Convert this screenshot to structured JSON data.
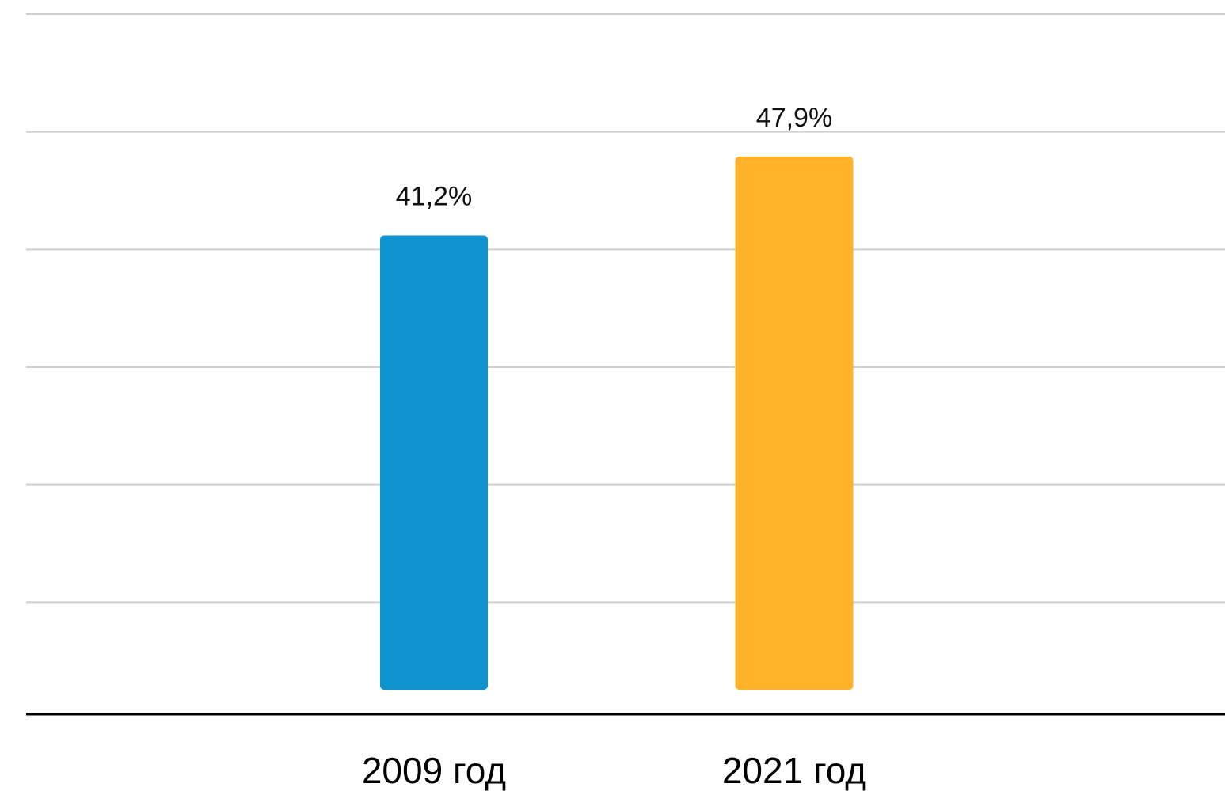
{
  "chart_data": {
    "type": "bar",
    "categories": [
      "2009 год",
      "2021 год"
    ],
    "values": [
      41.2,
      47.9
    ],
    "value_labels": [
      "41,2%",
      "47,9%"
    ],
    "colors": [
      "#0e93cf",
      "#ffb329"
    ],
    "ylim": [
      0,
      60
    ],
    "grid": true,
    "title": "",
    "xlabel": "",
    "ylabel": ""
  }
}
